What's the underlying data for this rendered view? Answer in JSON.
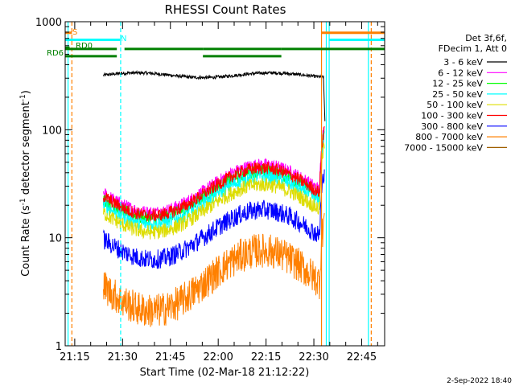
{
  "chart_data": {
    "type": "line",
    "title": "RHESSI Count Rates",
    "xlabel": "Start Time (02-Mar-18 21:12:22)",
    "ylabel_parts": [
      "Count Rate (s",
      "-1",
      " detector segment",
      "-1",
      ")"
    ],
    "footer": "2-Sep-2022 18:40",
    "y_scale": "log",
    "ylim": [
      1,
      1000
    ],
    "y_ticks": [
      {
        "value": 1,
        "label": "1"
      },
      {
        "value": 10,
        "label": "10"
      },
      {
        "value": 100,
        "label": "100"
      },
      {
        "value": 1000,
        "label": "1000"
      }
    ],
    "xlim_minutes": [
      21.2,
      22.87
    ],
    "x_ticks": [
      {
        "value": 21.25,
        "label": "21:15"
      },
      {
        "value": 21.5,
        "label": "21:30"
      },
      {
        "value": 21.75,
        "label": "21:45"
      },
      {
        "value": 22.0,
        "label": "22:00"
      },
      {
        "value": 22.25,
        "label": "22:15"
      },
      {
        "value": 22.5,
        "label": "22:30"
      },
      {
        "value": 22.75,
        "label": "22:45"
      }
    ],
    "legend": {
      "header": [
        "Det 3f,6f,",
        "FDecim 1, Att 0"
      ],
      "placement": "right"
    },
    "series": [
      {
        "name": "3 - 6 keV",
        "color": "#000000",
        "start": 21.4,
        "end": 22.55,
        "base": 320,
        "amp": 0.05,
        "noise": 0.03,
        "kind": "flat"
      },
      {
        "name": "6 - 12 keV",
        "color": "#ff00ff",
        "start": 21.4,
        "end": 22.555,
        "base": 32,
        "amp": 0.22,
        "noise": 0.06,
        "kind": "wave"
      },
      {
        "name": "12 - 25 keV",
        "color": "#00ff00",
        "start": 21.4,
        "end": 22.555,
        "base": 28,
        "amp": 0.22,
        "noise": 0.06,
        "kind": "wave"
      },
      {
        "name": "25 - 50 keV",
        "color": "#00ffff",
        "start": 21.4,
        "end": 22.555,
        "base": 25,
        "amp": 0.22,
        "noise": 0.07,
        "kind": "wave"
      },
      {
        "name": "50 - 100 keV",
        "color": "#dddd00",
        "start": 21.4,
        "end": 22.555,
        "base": 21,
        "amp": 0.22,
        "noise": 0.07,
        "kind": "wave"
      },
      {
        "name": "100 - 300 keV",
        "color": "#ff0000",
        "start": 21.4,
        "end": 22.555,
        "base": 30,
        "amp": 0.22,
        "noise": 0.06,
        "kind": "wave"
      },
      {
        "name": "300 - 800 keV",
        "color": "#0000ff",
        "start": 21.4,
        "end": 22.555,
        "base": 12,
        "amp": 0.23,
        "noise": 0.09,
        "kind": "wave"
      },
      {
        "name": "800 - 7000 keV",
        "color": "#ff8000",
        "start": 21.4,
        "end": 22.555,
        "base": 4.5,
        "amp": 0.28,
        "noise": 0.16,
        "kind": "wave"
      },
      {
        "name": "7000 - 15000 keV",
        "color": "#a06000",
        "start": 21.4,
        "end": 22.555,
        "base": 1,
        "amp": 0,
        "noise": 0,
        "kind": "none"
      }
    ],
    "vertical_lines": [
      {
        "x": 21.215,
        "color": "#00ffff",
        "style": "solid"
      },
      {
        "x": 21.235,
        "color": "#ff8000",
        "style": "dashed"
      },
      {
        "x": 21.49,
        "color": "#00ffff",
        "style": "dashed"
      },
      {
        "x": 22.54,
        "color": "#ff8000",
        "style": "solid"
      },
      {
        "x": 22.565,
        "color": "#00ffff",
        "style": "solid"
      },
      {
        "x": 22.58,
        "color": "#00ffff",
        "style": "solid"
      },
      {
        "x": 22.785,
        "color": "#00ffff",
        "style": "solid"
      },
      {
        "x": 22.8,
        "color": "#ff8000",
        "style": "dashed"
      }
    ],
    "flag_bars": [
      {
        "label": "S",
        "color": "#ff8000",
        "y": 790,
        "segments": [
          [
            21.2,
            21.235
          ],
          [
            22.54,
            22.87
          ]
        ]
      },
      {
        "label": "N",
        "color": "#00ffff",
        "y": 680,
        "segments": [
          [
            21.2,
            21.49
          ],
          [
            22.58,
            22.87
          ]
        ]
      },
      {
        "label": "RD0",
        "color": "#008000",
        "y": 575,
        "segments": [
          [
            21.2,
            21.223
          ]
        ]
      },
      {
        "label": "RD6",
        "color": "#008000",
        "y": 560,
        "segments": [
          [
            21.2,
            21.47
          ],
          [
            21.51,
            21.92
          ],
          [
            21.92,
            22.33
          ],
          [
            22.33,
            22.87
          ]
        ]
      },
      {
        "label": "",
        "color": "#008000",
        "y": 480,
        "segments": [
          [
            21.2,
            21.47
          ],
          [
            21.92,
            22.33
          ]
        ]
      }
    ]
  }
}
